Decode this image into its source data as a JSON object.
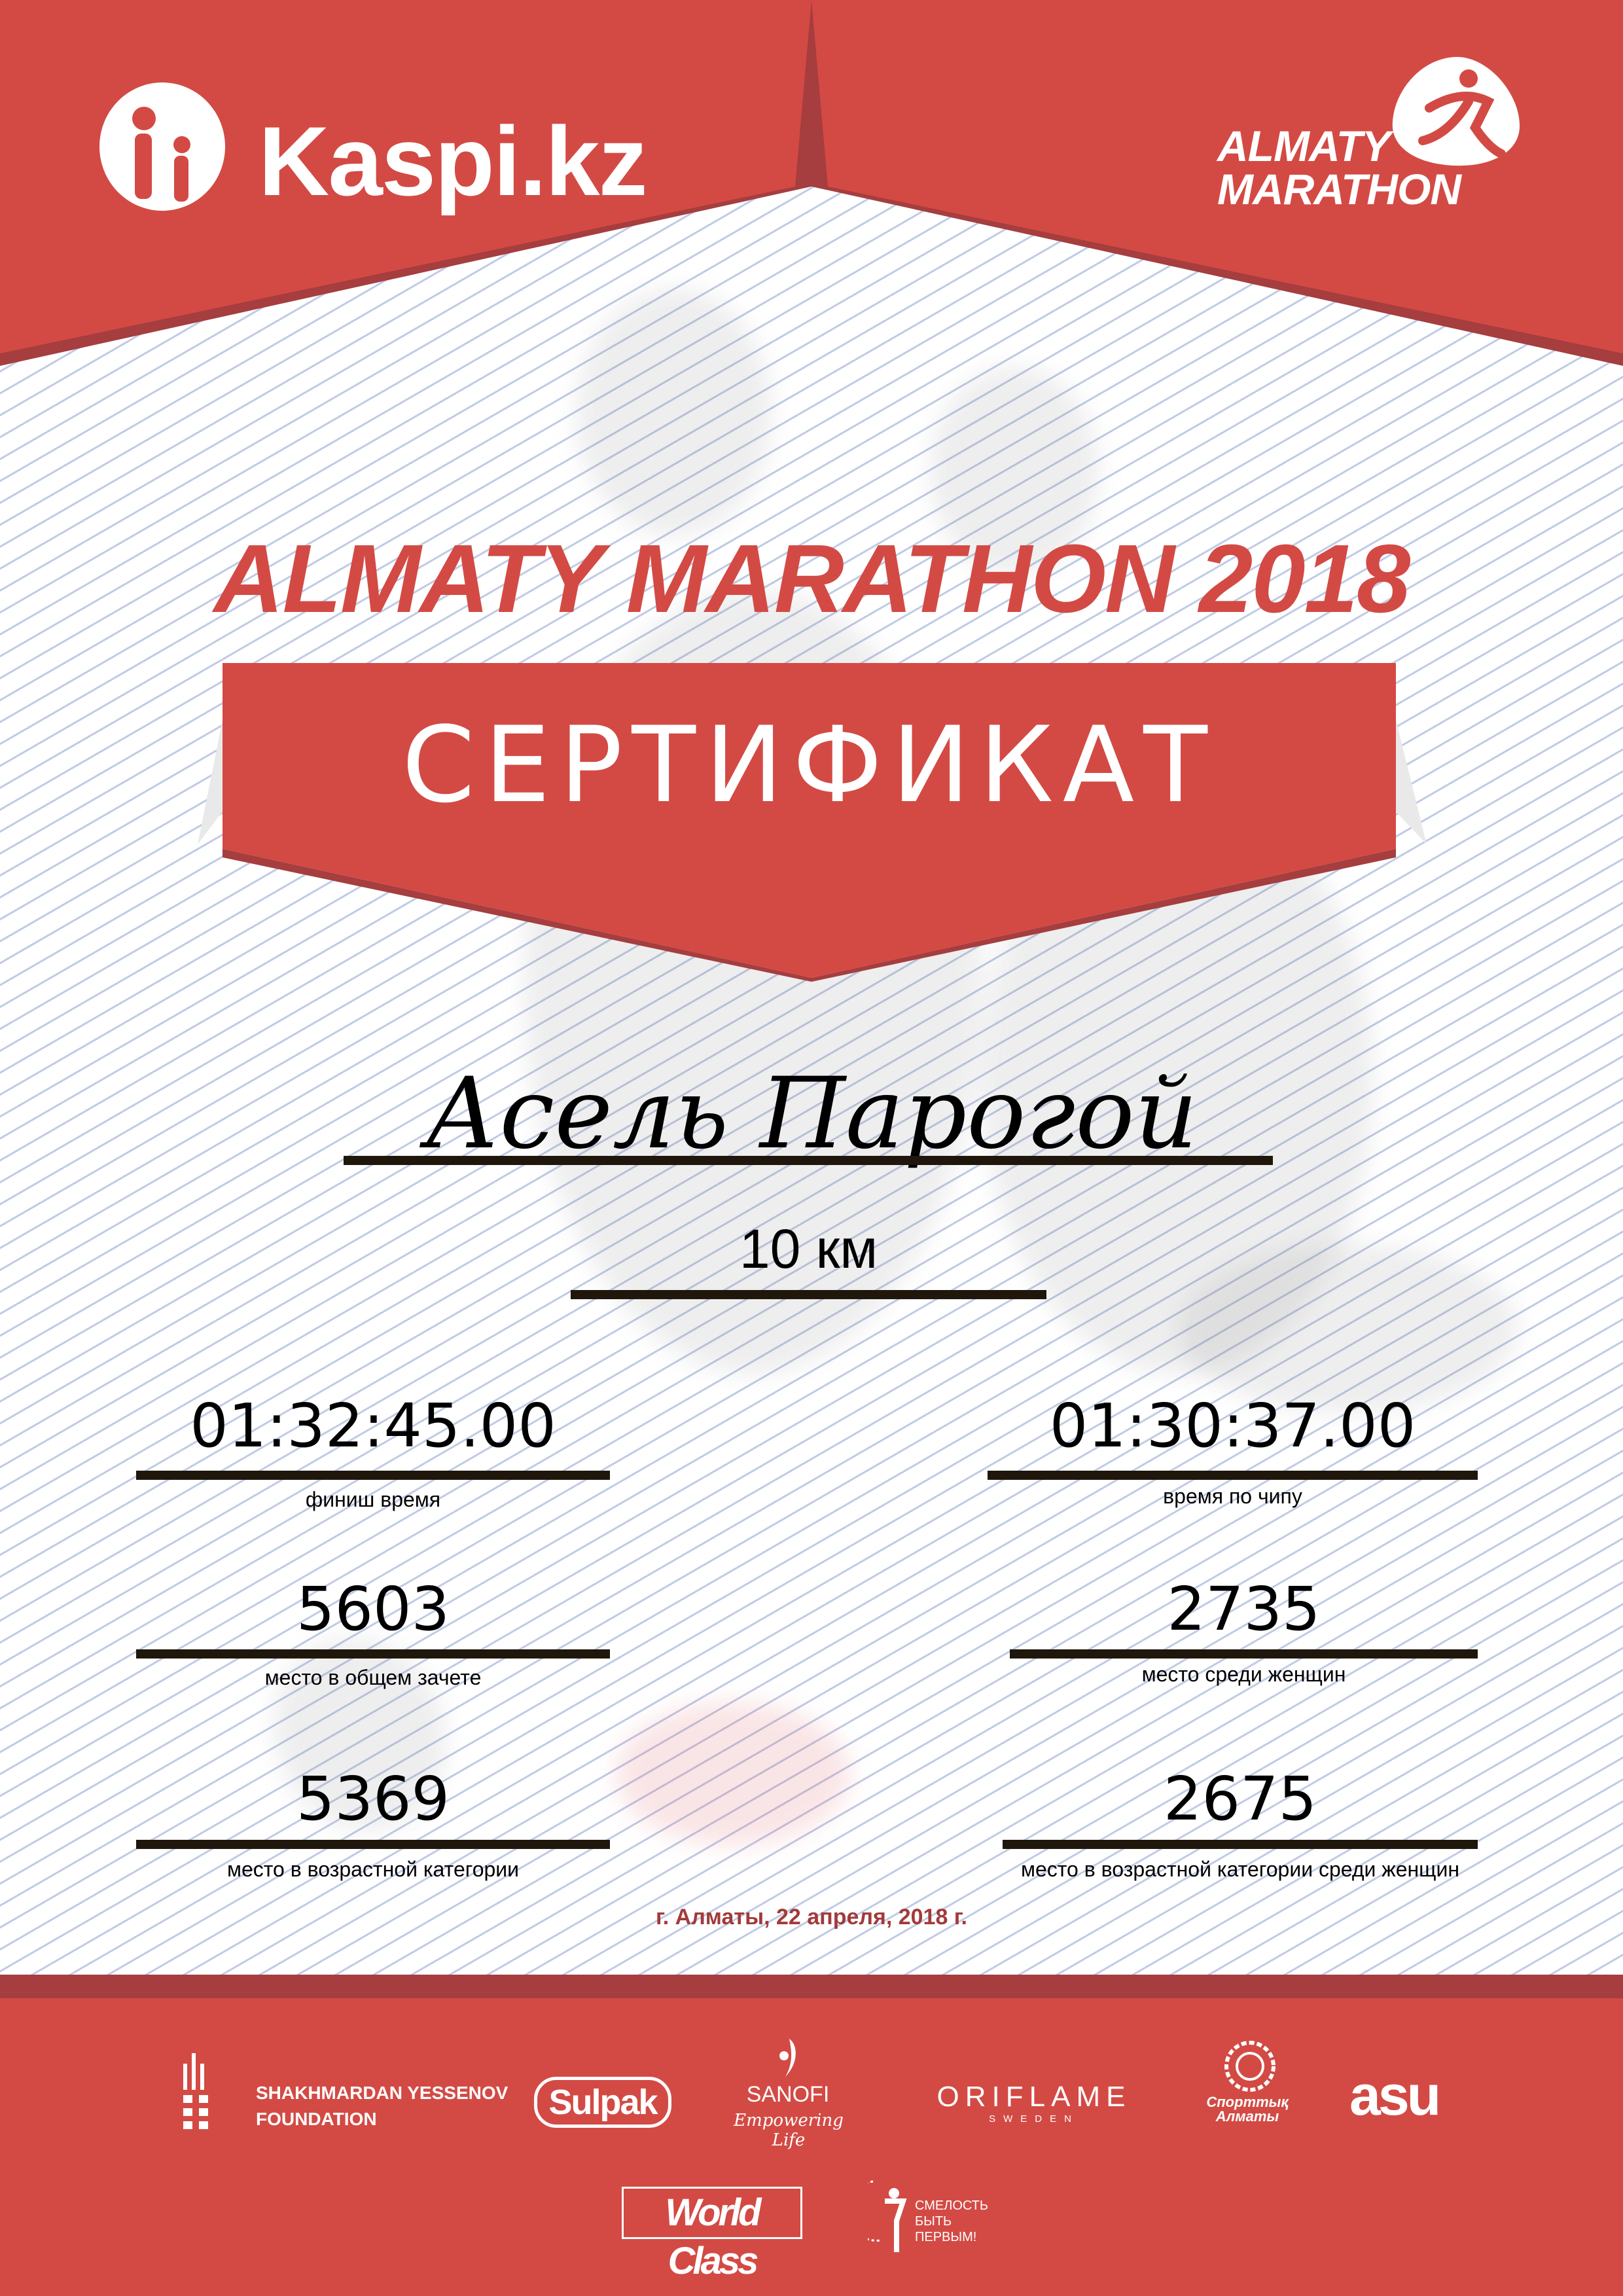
{
  "colors": {
    "brand_red": "#d34a44",
    "dark_red": "#a63d3e",
    "date_red": "#a33a3a"
  },
  "header": {
    "left_logo": {
      "text": "Kaspi.kz",
      "icon": "kaspi-family-icon"
    },
    "right_logo": {
      "line1": "ALMATY",
      "line2": "MARATHON",
      "icon": "runner-icon"
    }
  },
  "event_title": "ALMATY MARATHON 2018",
  "certificate_title": "СЕРТИФИКАТ",
  "participant_name": "Асель Парогой",
  "distance": "10 км",
  "results": {
    "finish_time": {
      "value": "01:32:45.00",
      "label": "финиш время"
    },
    "chip_time": {
      "value": "01:30:37.00",
      "label": "время по чипу"
    },
    "overall_place": {
      "value": "5603",
      "label": "место в общем зачете"
    },
    "women_place": {
      "value": "2735",
      "label": "место среди женщин"
    },
    "age_place": {
      "value": "5369",
      "label": "место в возрастной категории"
    },
    "women_age_place": {
      "value": "2675",
      "label": "место в возрастной категории среди женщин"
    }
  },
  "date_place": "г. Алматы, 22 апреля, 2018 г.",
  "sponsors": {
    "yessenov": {
      "line1": "SHAKHMARDAN YESSENOV",
      "line2": "FOUNDATION"
    },
    "sulpak": "Sulpak",
    "sanofi": {
      "name": "SANOFI",
      "tagline": "Empowering Life"
    },
    "oriflame": {
      "name": "ORIFLAME",
      "sub": "SWEDEN"
    },
    "sportyk": {
      "line1": "Спорттық",
      "line2": "Алматы"
    },
    "asu": "asu",
    "worldclass": "World Class",
    "smelost": {
      "line1": "СМЕЛОСТЬ",
      "line2": "БЫТЬ",
      "line3": "ПЕРВЫМ!"
    }
  }
}
